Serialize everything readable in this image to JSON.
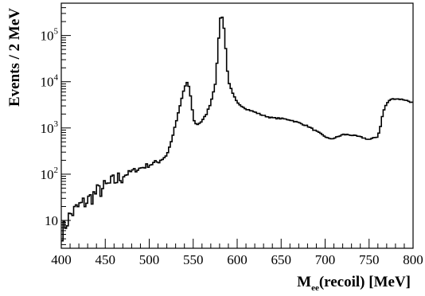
{
  "chart_data": {
    "type": "histogram",
    "xlabel": "M_ee(recoil) [MeV]",
    "xlabel_main": "M",
    "xlabel_sub": "ee",
    "xlabel_rest": "(recoil) [MeV]",
    "ylabel": "Events / 2 MeV",
    "xlim": [
      400,
      800
    ],
    "ylim": [
      2.5,
      500000
    ],
    "y_scale": "log",
    "bin_width": 2,
    "x_ticks": [
      400,
      450,
      500,
      550,
      600,
      650,
      700,
      750,
      800
    ],
    "y_ticks": [
      {
        "value": 10,
        "base": "10",
        "exp": ""
      },
      {
        "value": 100,
        "base": "10",
        "exp": "2"
      },
      {
        "value": 1000,
        "base": "10",
        "exp": "3"
      },
      {
        "value": 10000,
        "base": "10",
        "exp": "4"
      },
      {
        "value": 100000,
        "base": "10",
        "exp": "5"
      }
    ],
    "grid": false,
    "series": [
      {
        "x": [
          400,
          410,
          420,
          430,
          440,
          450,
          460,
          470,
          480,
          490,
          500,
          510,
          520,
          525,
          530,
          535,
          540,
          543,
          546,
          548,
          550,
          552,
          555,
          560,
          565,
          570,
          575,
          578,
          580,
          582,
          584,
          586,
          588,
          590,
          595,
          600,
          610,
          620,
          630,
          640,
          650,
          660,
          670,
          680,
          690,
          700,
          705,
          710,
          715,
          720,
          725,
          730,
          740,
          750,
          760,
          763,
          766,
          770,
          775,
          780,
          790,
          800
        ],
        "y": [
          5,
          13,
          20,
          27,
          40,
          52,
          70,
          90,
          115,
          135,
          160,
          185,
          260,
          500,
          1200,
          3000,
          7500,
          9500,
          7000,
          3500,
          1700,
          1250,
          1200,
          1400,
          2000,
          3500,
          9000,
          40000,
          200000,
          280000,
          230000,
          90000,
          30000,
          10000,
          5500,
          3500,
          2600,
          2200,
          1850,
          1650,
          1600,
          1500,
          1300,
          1100,
          850,
          650,
          580,
          600,
          650,
          720,
          720,
          700,
          640,
          560,
          650,
          1100,
          2200,
          3400,
          4200,
          4300,
          4100,
          3500
        ]
      }
    ]
  }
}
